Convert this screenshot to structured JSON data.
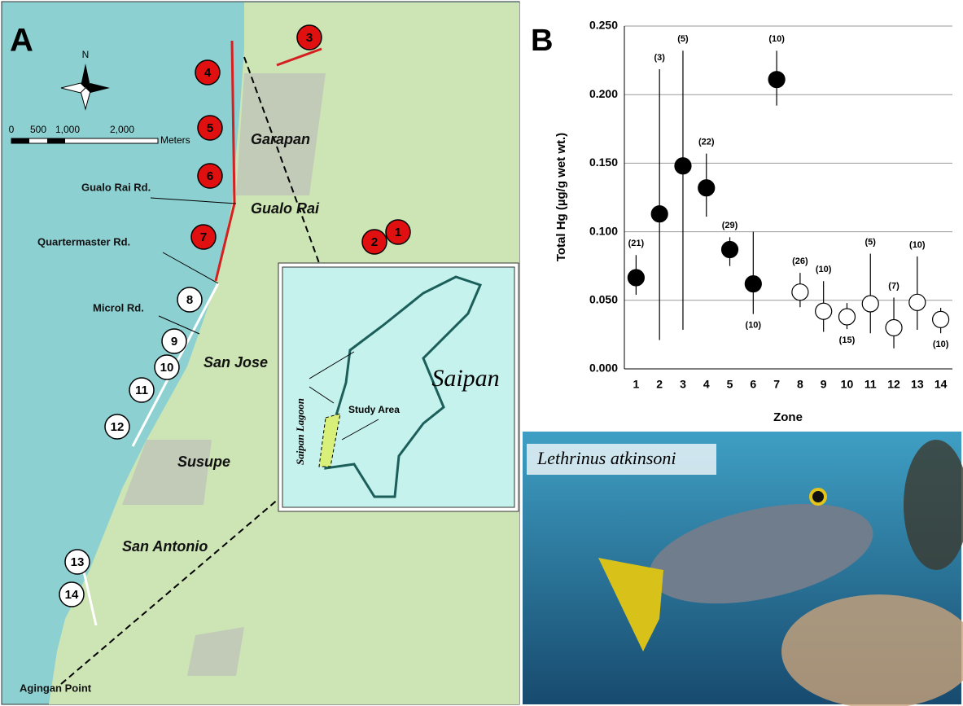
{
  "chart_data": {
    "type": "scatter",
    "panel_label": "B",
    "xlabel": "Zone",
    "ylabel": "Total Hg (µg/g wet wt.)",
    "categories": [
      "1",
      "2",
      "3",
      "4",
      "5",
      "6",
      "7",
      "8",
      "9",
      "10",
      "11",
      "12",
      "13",
      "14"
    ],
    "values": [
      0.0665,
      0.113,
      0.148,
      0.132,
      0.087,
      0.062,
      0.211,
      0.056,
      0.042,
      0.038,
      0.0475,
      0.03,
      0.0485,
      0.036
    ],
    "error_lower": [
      0.054,
      0.021,
      0.0285,
      0.111,
      0.075,
      0.04,
      0.192,
      0.045,
      0.027,
      0.029,
      0.026,
      0.015,
      0.0285,
      0.026
    ],
    "error_upper": [
      0.083,
      0.2185,
      0.232,
      0.157,
      0.096,
      0.1,
      0.232,
      0.07,
      0.064,
      0.048,
      0.084,
      0.052,
      0.082,
      0.0445
    ],
    "count_labels": [
      "(21)",
      "(3)",
      "(5)",
      "(22)",
      "(29)",
      "(10)",
      "(10)",
      "(26)",
      "(10)",
      "(15)",
      "(5)",
      "(7)",
      "(10)",
      "(10)"
    ],
    "point_colors": [
      "#000000",
      "#000000",
      "#000000",
      "#000000",
      "#000000",
      "#000000",
      "#000000",
      "#ffffff",
      "#ffffff",
      "#ffffff",
      "#ffffff",
      "#ffffff",
      "#ffffff",
      "#ffffff"
    ],
    "ylim": [
      0,
      0.25
    ],
    "yticks": [
      {
        "value": 0,
        "label": "0.000"
      },
      {
        "value": 0.05,
        "label": "0.050"
      },
      {
        "value": 0.1,
        "label": "0.100"
      },
      {
        "value": 0.15,
        "label": "0.150"
      },
      {
        "value": 0.2,
        "label": "0.200"
      },
      {
        "value": 0.25,
        "label": "0.250"
      }
    ],
    "grid": true
  },
  "map": {
    "panel_label": "A",
    "north": "N",
    "scale": [
      "0",
      "500",
      "1,000",
      "2,000"
    ],
    "scale_unit": "Meters",
    "places": [
      "Garapan",
      "Gualo Rai",
      "San Jose",
      "Susupe",
      "San Antonio"
    ],
    "roads": [
      "Gualo Rai Rd.",
      "Quartermaster Rd.",
      "Microl Rd.",
      "Agingan Point"
    ],
    "zones": [
      "1",
      "2",
      "3",
      "4",
      "5",
      "6",
      "7",
      "8",
      "9",
      "10",
      "11",
      "12",
      "13",
      "14"
    ],
    "inset": {
      "island": "Saipan",
      "lagoon": "Saipan Lagoon",
      "study_area": "Study Area"
    }
  },
  "photo": {
    "caption": "Lethrinus atkinsoni"
  }
}
